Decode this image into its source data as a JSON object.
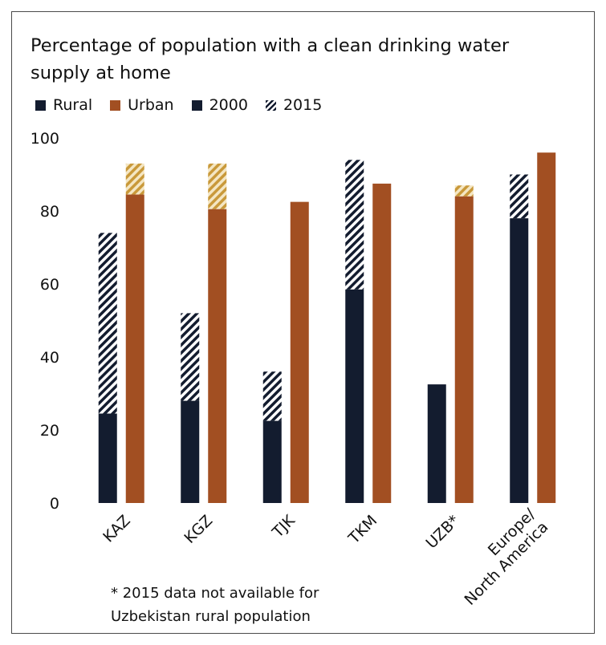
{
  "chart_data": {
    "type": "bar",
    "title": "Percentage of population with a clean drinking water supply at home",
    "title_lines": [
      "Percentage of population with a clean drinking water",
      "supply at home"
    ],
    "legend": {
      "placement": "top-left",
      "items": [
        {
          "key": "rural",
          "label": "Rural",
          "color": "#131c2f",
          "pattern": "solid"
        },
        {
          "key": "urban",
          "label": "Urban",
          "color": "#a24f22",
          "pattern": "solid"
        },
        {
          "key": "y2000",
          "label": "2000",
          "color": "#131c2f",
          "pattern": "solid"
        },
        {
          "key": "y2015",
          "label": "2015",
          "color": "#131c2f",
          "pattern": "hatched"
        }
      ]
    },
    "categories": [
      "KAZ",
      "KGZ",
      "TJK",
      "TKM",
      "UZB*",
      "Europe/ North America"
    ],
    "category_label_lines": [
      [
        "KAZ"
      ],
      [
        "KGZ"
      ],
      [
        "TJK"
      ],
      [
        "TKM"
      ],
      [
        "UZB*"
      ],
      [
        "Europe/",
        "North America"
      ]
    ],
    "series": [
      {
        "name": "Rural",
        "color": "#131c2f",
        "hatch_color": "#131c2f",
        "values_2000": [
          24.5,
          28,
          22.5,
          58.5,
          32.5,
          78
        ],
        "values_2015": [
          74,
          52,
          36,
          94,
          null,
          90
        ]
      },
      {
        "name": "Urban",
        "color": "#a24f22",
        "hatch_color": "#d4a94a",
        "values_2000": [
          84.5,
          80.5,
          82.5,
          87.5,
          84,
          96
        ],
        "values_2015": [
          93,
          93,
          82.5,
          87.5,
          87,
          96
        ]
      }
    ],
    "xlabel": "",
    "ylabel": "",
    "ylim": [
      0,
      100
    ],
    "yticks": [
      0,
      20,
      40,
      60,
      80,
      100
    ],
    "grid": false
  },
  "footnote": {
    "lines": [
      "* 2015 data not available for",
      "Uzbekistan rural population"
    ]
  }
}
